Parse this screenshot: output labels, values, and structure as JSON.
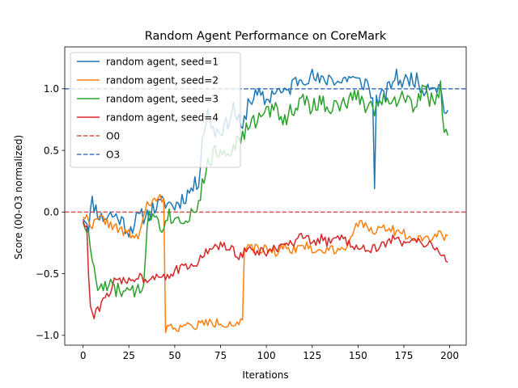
{
  "chart_data": {
    "type": "line",
    "title": "Random Agent Performance on CoreMark",
    "xlabel": "Iterations",
    "ylabel": "Score (00-O3 normalized)",
    "xlim": [
      -10,
      209
    ],
    "ylim": [
      -1.08,
      1.34
    ],
    "xticks": [
      "0",
      "25",
      "50",
      "75",
      "100",
      "125",
      "150",
      "175",
      "200"
    ],
    "yticks": [
      "-1.0",
      "-0.5",
      "0.0",
      "0.5",
      "1.0"
    ],
    "legend_position": "upper-left",
    "grid": false,
    "series": [
      {
        "name": "random agent, seed=1",
        "color": "#1f77b4",
        "keypoints": [
          [
            0,
            -0.02
          ],
          [
            3,
            -0.1
          ],
          [
            5,
            0.08
          ],
          [
            10,
            -0.05
          ],
          [
            15,
            -0.02
          ],
          [
            20,
            -0.05
          ],
          [
            25,
            -0.15
          ],
          [
            30,
            -0.05
          ],
          [
            35,
            -0.02
          ],
          [
            40,
            0.05
          ],
          [
            45,
            0.08
          ],
          [
            50,
            0.05
          ],
          [
            55,
            0.12
          ],
          [
            60,
            0.2
          ],
          [
            63,
            0.25
          ],
          [
            65,
            0.6
          ],
          [
            68,
            0.8
          ],
          [
            72,
            0.65
          ],
          [
            78,
            0.7
          ],
          [
            82,
            0.85
          ],
          [
            87,
            0.65
          ],
          [
            90,
            0.9
          ],
          [
            95,
            0.95
          ],
          [
            100,
            0.9
          ],
          [
            105,
            1.0
          ],
          [
            110,
            0.95
          ],
          [
            115,
            1.05
          ],
          [
            120,
            1.1
          ],
          [
            125,
            1.1
          ],
          [
            130,
            1.05
          ],
          [
            135,
            1.1
          ],
          [
            140,
            1.05
          ],
          [
            145,
            1.1
          ],
          [
            150,
            1.05
          ],
          [
            155,
            1.05
          ],
          [
            158,
            0.9
          ],
          [
            159,
            0.25
          ],
          [
            160,
            0.9
          ],
          [
            165,
            0.95
          ],
          [
            170,
            1.1
          ],
          [
            175,
            1.05
          ],
          [
            180,
            1.1
          ],
          [
            185,
            1.0
          ],
          [
            190,
            1.05
          ],
          [
            195,
            1.0
          ],
          [
            197,
            0.85
          ],
          [
            199,
            0.8
          ]
        ],
        "noise": 0.07,
        "seed": 11
      },
      {
        "name": "random agent, seed=2",
        "color": "#ff7f0e",
        "keypoints": [
          [
            0,
            -0.02
          ],
          [
            5,
            -0.1
          ],
          [
            10,
            -0.05
          ],
          [
            15,
            -0.1
          ],
          [
            20,
            -0.15
          ],
          [
            25,
            -0.18
          ],
          [
            30,
            -0.2
          ],
          [
            35,
            0.05
          ],
          [
            40,
            0.1
          ],
          [
            44,
            0.12
          ],
          [
            45,
            -0.95
          ],
          [
            50,
            -0.93
          ],
          [
            55,
            -0.93
          ],
          [
            60,
            -0.93
          ],
          [
            65,
            -0.9
          ],
          [
            70,
            -0.9
          ],
          [
            75,
            -0.9
          ],
          [
            80,
            -0.9
          ],
          [
            85,
            -0.9
          ],
          [
            87,
            -0.9
          ],
          [
            88,
            -0.3
          ],
          [
            95,
            -0.3
          ],
          [
            100,
            -0.3
          ],
          [
            105,
            -0.32
          ],
          [
            110,
            -0.28
          ],
          [
            115,
            -0.3
          ],
          [
            120,
            -0.27
          ],
          [
            125,
            -0.3
          ],
          [
            130,
            -0.32
          ],
          [
            135,
            -0.3
          ],
          [
            140,
            -0.3
          ],
          [
            145,
            -0.25
          ],
          [
            150,
            -0.1
          ],
          [
            155,
            -0.12
          ],
          [
            160,
            -0.15
          ],
          [
            165,
            -0.12
          ],
          [
            170,
            -0.15
          ],
          [
            175,
            -0.18
          ],
          [
            180,
            -0.2
          ],
          [
            185,
            -0.2
          ],
          [
            190,
            -0.2
          ],
          [
            195,
            -0.18
          ],
          [
            199,
            -0.2
          ]
        ],
        "noise": 0.04,
        "seed": 22
      },
      {
        "name": "random agent, seed=3",
        "color": "#2ca02c",
        "keypoints": [
          [
            0,
            -0.05
          ],
          [
            2,
            -0.15
          ],
          [
            4,
            -0.28
          ],
          [
            6,
            -0.45
          ],
          [
            7,
            -0.6
          ],
          [
            10,
            -0.62
          ],
          [
            15,
            -0.6
          ],
          [
            18,
            -0.65
          ],
          [
            20,
            -0.62
          ],
          [
            25,
            -0.68
          ],
          [
            30,
            -0.62
          ],
          [
            33,
            -0.58
          ],
          [
            35,
            -0.05
          ],
          [
            40,
            -0.02
          ],
          [
            43,
            -0.12
          ],
          [
            45,
            -0.02
          ],
          [
            50,
            -0.05
          ],
          [
            55,
            -0.05
          ],
          [
            60,
            0.0
          ],
          [
            63,
            0.08
          ],
          [
            65,
            0.2
          ],
          [
            68,
            0.4
          ],
          [
            72,
            0.48
          ],
          [
            78,
            0.5
          ],
          [
            83,
            0.55
          ],
          [
            87,
            0.6
          ],
          [
            90,
            0.7
          ],
          [
            95,
            0.75
          ],
          [
            100,
            0.8
          ],
          [
            105,
            0.85
          ],
          [
            110,
            0.75
          ],
          [
            115,
            0.85
          ],
          [
            120,
            0.9
          ],
          [
            125,
            0.85
          ],
          [
            130,
            0.9
          ],
          [
            135,
            0.85
          ],
          [
            140,
            0.85
          ],
          [
            145,
            0.9
          ],
          [
            150,
            0.95
          ],
          [
            155,
            0.85
          ],
          [
            160,
            0.85
          ],
          [
            165,
            0.95
          ],
          [
            170,
            0.9
          ],
          [
            175,
            0.95
          ],
          [
            180,
            0.85
          ],
          [
            185,
            1.0
          ],
          [
            190,
            0.9
          ],
          [
            195,
            1.0
          ],
          [
            197,
            0.6
          ],
          [
            199,
            0.62
          ]
        ],
        "noise": 0.07,
        "seed": 33
      },
      {
        "name": "random agent, seed=4",
        "color": "#d62728",
        "keypoints": [
          [
            0,
            -0.05
          ],
          [
            2,
            -0.15
          ],
          [
            3,
            -0.5
          ],
          [
            4,
            -0.78
          ],
          [
            6,
            -0.85
          ],
          [
            8,
            -0.8
          ],
          [
            10,
            -0.75
          ],
          [
            13,
            -0.68
          ],
          [
            15,
            -0.62
          ],
          [
            18,
            -0.55
          ],
          [
            20,
            -0.57
          ],
          [
            25,
            -0.55
          ],
          [
            30,
            -0.52
          ],
          [
            35,
            -0.55
          ],
          [
            40,
            -0.5
          ],
          [
            45,
            -0.52
          ],
          [
            50,
            -0.48
          ],
          [
            55,
            -0.45
          ],
          [
            60,
            -0.45
          ],
          [
            65,
            -0.35
          ],
          [
            70,
            -0.3
          ],
          [
            75,
            -0.27
          ],
          [
            80,
            -0.3
          ],
          [
            85,
            -0.35
          ],
          [
            90,
            -0.3
          ],
          [
            95,
            -0.33
          ],
          [
            100,
            -0.32
          ],
          [
            105,
            -0.3
          ],
          [
            110,
            -0.28
          ],
          [
            115,
            -0.25
          ],
          [
            120,
            -0.2
          ],
          [
            125,
            -0.25
          ],
          [
            130,
            -0.22
          ],
          [
            135,
            -0.25
          ],
          [
            140,
            -0.2
          ],
          [
            145,
            -0.25
          ],
          [
            150,
            -0.28
          ],
          [
            155,
            -0.3
          ],
          [
            160,
            -0.3
          ],
          [
            165,
            -0.25
          ],
          [
            170,
            -0.22
          ],
          [
            175,
            -0.25
          ],
          [
            180,
            -0.2
          ],
          [
            185,
            -0.25
          ],
          [
            190,
            -0.28
          ],
          [
            195,
            -0.32
          ],
          [
            199,
            -0.4
          ]
        ],
        "noise": 0.04,
        "seed": 44
      },
      {
        "name": "O0",
        "color": "#d9534f",
        "dashed": true,
        "hline": 0.0
      },
      {
        "name": "O3",
        "color": "#4472c4",
        "dashed": true,
        "hline": 1.0
      }
    ]
  }
}
